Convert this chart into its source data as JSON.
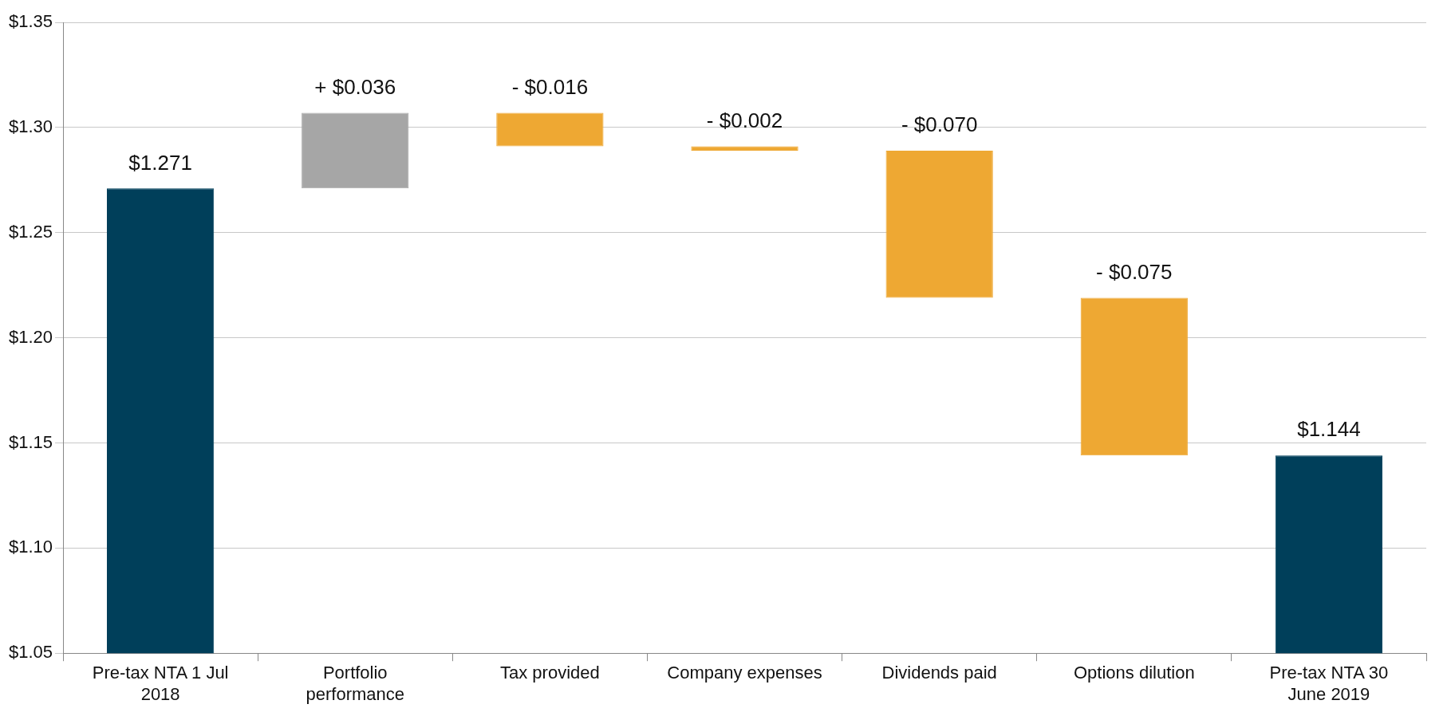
{
  "chart_data": {
    "type": "bar",
    "categories": [
      "Pre-tax NTA 1 Jul 2018",
      "Portfolio performance",
      "Tax provided",
      "Company expenses",
      "Dividends paid",
      "Options dilution",
      "Pre-tax NTA 30 June 2019"
    ],
    "values": [
      1.271,
      0.036,
      -0.016,
      -0.002,
      -0.07,
      -0.075,
      1.144
    ],
    "base": [
      null,
      1.271,
      1.307,
      1.291,
      1.289,
      1.219,
      null
    ],
    "colors": [
      "#003f5a",
      "#a6a6a6",
      "#eea833",
      "#eea833",
      "#eea833",
      "#eea833",
      "#003f5a"
    ],
    "value_labels": [
      "$1.271",
      "+ $0.036",
      "- $0.016",
      "- $0.002",
      "- $0.070",
      "- $0.075",
      "$1.144"
    ],
    "ylim": [
      1.05,
      1.35
    ],
    "yticks": [
      {
        "value": 1.05,
        "label": "$1.05"
      },
      {
        "value": 1.1,
        "label": "$1.10"
      },
      {
        "value": 1.15,
        "label": "$1.15"
      },
      {
        "value": 1.2,
        "label": "$1.20"
      },
      {
        "value": 1.25,
        "label": "$1.25"
      },
      {
        "value": 1.3,
        "label": "$1.30"
      },
      {
        "value": 1.35,
        "label": "$1.35"
      }
    ],
    "grid": "y",
    "legend": false
  }
}
